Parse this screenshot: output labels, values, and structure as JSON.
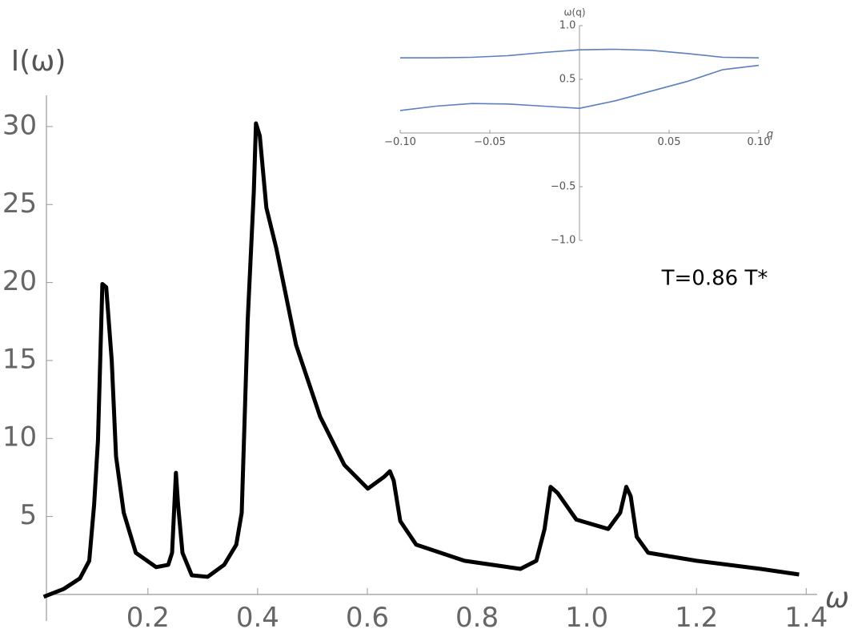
{
  "chart_data": [
    {
      "type": "line",
      "y_label": "I(ω)",
      "x_label": "ω",
      "annotation": "T=0.86 T*",
      "x": [
        0.01,
        0.047,
        0.076,
        0.093,
        0.102,
        0.109,
        0.117,
        0.124,
        0.134,
        0.142,
        0.156,
        0.178,
        0.215,
        0.237,
        0.244,
        0.251,
        0.255,
        0.263,
        0.28,
        0.309,
        0.339,
        0.361,
        0.371,
        0.382,
        0.393,
        0.397,
        0.404,
        0.416,
        0.434,
        0.47,
        0.514,
        0.558,
        0.601,
        0.631,
        0.641,
        0.648,
        0.66,
        0.689,
        0.777,
        0.879,
        0.908,
        0.923,
        0.934,
        0.947,
        0.981,
        1.039,
        1.061,
        1.072,
        1.08,
        1.091,
        1.112,
        1.2,
        1.317,
        1.387
      ],
      "series": [
        {
          "color": "#000000",
          "values": [
            -0.15,
            0.36,
            1.03,
            2.16,
            5.75,
            9.87,
            19.9,
            19.7,
            15.0,
            8.84,
            5.24,
            2.67,
            1.75,
            1.9,
            2.67,
            7.8,
            5.75,
            2.67,
            1.23,
            1.13,
            1.9,
            3.19,
            5.24,
            17.6,
            25.8,
            30.2,
            29.4,
            24.8,
            22.2,
            16.0,
            11.4,
            8.3,
            6.78,
            7.55,
            7.9,
            7.3,
            4.7,
            3.19,
            2.16,
            1.64,
            2.16,
            4.2,
            6.9,
            6.5,
            4.8,
            4.2,
            5.24,
            6.9,
            6.3,
            3.7,
            2.67,
            2.16,
            1.64,
            1.28
          ]
        }
      ],
      "xlim": [
        0.015,
        1.42
      ],
      "ylim": [
        -1.7,
        32
      ],
      "xticks": [
        0.2,
        0.4,
        0.6,
        0.8,
        {
          "value": 1.0,
          "label": "1.0"
        },
        1.2,
        1.4
      ],
      "yticks": [
        5,
        10,
        15,
        20,
        25,
        30
      ]
    },
    {
      "type": "line",
      "y_label": "ω(q)",
      "x_label": "q",
      "x": [
        -0.1,
        -0.08,
        -0.06,
        -0.04,
        -0.02,
        0,
        0.02,
        0.04,
        0.06,
        0.08,
        0.1
      ],
      "series": [
        {
          "color": "#5b7fbf",
          "values": [
            0.7,
            0.7,
            0.705,
            0.72,
            0.75,
            0.775,
            0.78,
            0.77,
            0.74,
            0.705,
            0.7
          ]
        },
        {
          "color": "#5b7fbf",
          "values": [
            0.21,
            0.25,
            0.275,
            0.27,
            0.25,
            0.23,
            0.3,
            0.39,
            0.48,
            0.59,
            0.63
          ]
        }
      ],
      "xlim": [
        -0.1,
        0.1
      ],
      "ylim": [
        -1,
        1
      ],
      "xticks": [
        {
          "value": -0.1,
          "label": "−0.10"
        },
        {
          "value": -0.05,
          "label": "−0.05"
        },
        0.05,
        {
          "value": 0.1,
          "label": "0.10"
        }
      ],
      "yticks": [
        {
          "value": -1,
          "label": "−1.0"
        },
        {
          "value": -0.5,
          "label": "−0.5"
        },
        0.5,
        {
          "value": 1,
          "label": "1.0"
        }
      ]
    }
  ]
}
